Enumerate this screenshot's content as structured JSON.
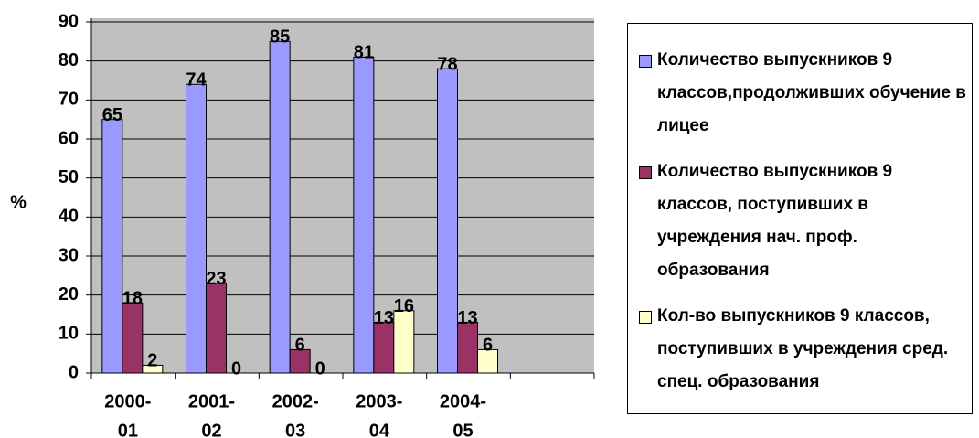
{
  "chart_data": {
    "type": "bar",
    "y_label": "%",
    "categories": [
      [
        "2000-",
        "01"
      ],
      [
        "2001-",
        "02"
      ],
      [
        "2002-",
        "03"
      ],
      [
        "2003-",
        "04"
      ],
      [
        "2004-",
        "05"
      ],
      null
    ],
    "series": [
      {
        "name": "Количество выпускников 9 классов,продолживших обучение в лицее",
        "color": "#9999ff",
        "values": [
          65,
          74,
          85,
          81,
          78,
          null
        ]
      },
      {
        "name": "Количество выпускников 9 классов, поступивших в учреждения нач. проф. образования",
        "color": "#993366",
        "values": [
          18,
          23,
          6,
          13,
          13,
          null
        ]
      },
      {
        "name": "Кол-во выпускников 9 классов, поступивших в учреждения сред. спец. образования",
        "color": "#ffffcc",
        "values": [
          2,
          0,
          0,
          16,
          6,
          null
        ]
      }
    ],
    "ylim": [
      0,
      90
    ],
    "yticks": [
      0,
      10,
      20,
      30,
      40,
      50,
      60,
      70,
      80,
      90
    ],
    "grid": true,
    "legend": "right"
  }
}
